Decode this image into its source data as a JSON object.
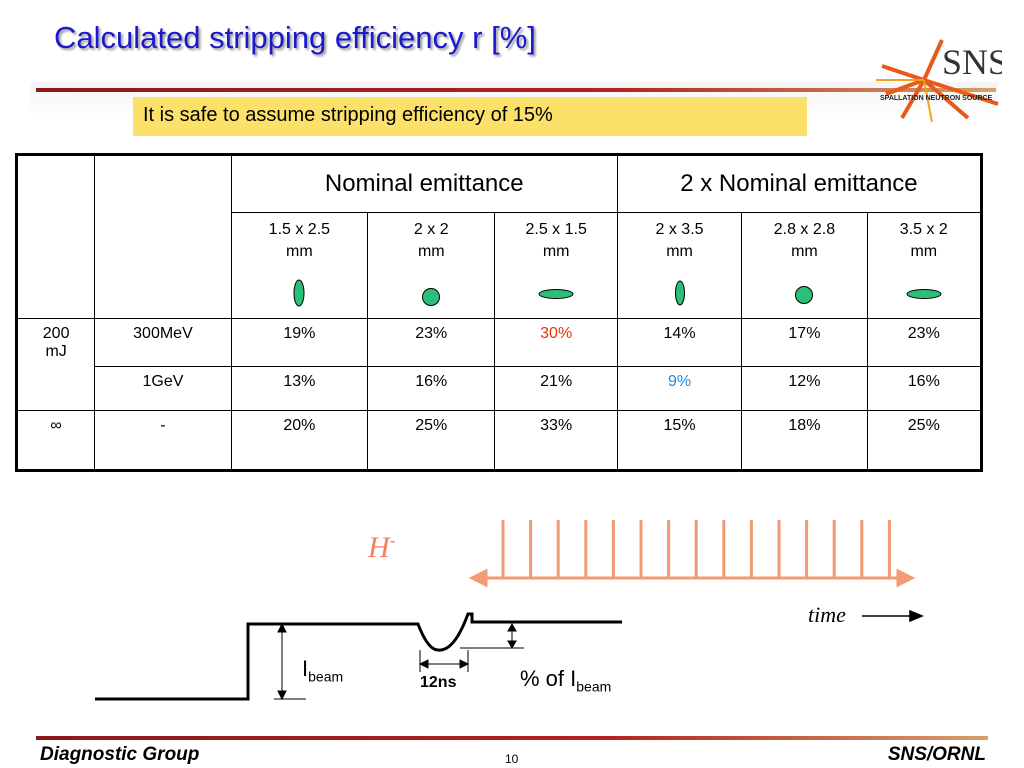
{
  "title": "Calculated stripping efficiency r [%]",
  "note": "It is safe to assume stripping efficiency of 15%",
  "logo": {
    "text": "SNS",
    "subtext": "SPALLATION NEUTRON SOURCE"
  },
  "table": {
    "group_headers": [
      "Nominal emittance",
      "2 x Nominal emittance"
    ],
    "columns": [
      {
        "line1": "1.5 x 2.5",
        "line2": "mm",
        "shape": "tall-ellipse"
      },
      {
        "line1": "2 x 2",
        "line2": "mm",
        "shape": "circle"
      },
      {
        "line1": "2.5 x 1.5",
        "line2": "mm",
        "shape": "wide-ellipse"
      },
      {
        "line1": "2 x 3.5",
        "line2": "mm",
        "shape": "tall-ellipse"
      },
      {
        "line1": "2.8 x 2.8",
        "line2": "mm",
        "shape": "circle"
      },
      {
        "line1": "3.5 x 2",
        "line2": "mm",
        "shape": "wide-ellipse"
      }
    ],
    "shape_color": "#2bbf7a",
    "rows": [
      {
        "label1_a": "200",
        "label1_b": "mJ",
        "label2": "300MeV",
        "values": [
          "19%",
          "23%",
          "30%",
          "14%",
          "17%",
          "23%"
        ]
      },
      {
        "label2": "1GeV",
        "values": [
          "13%",
          "16%",
          "21%",
          "9%",
          "12%",
          "16%"
        ]
      },
      {
        "label1": "∞",
        "label2": "-",
        "values": [
          "20%",
          "25%",
          "33%",
          "15%",
          "18%",
          "25%"
        ]
      }
    ],
    "highlight_colors": {
      "red": "#e63300",
      "blue": "#1a8ce6"
    }
  },
  "diagram": {
    "h_label": "H",
    "h_sup": "-",
    "time_label": "time",
    "ibeam_main": "I",
    "ibeam_sub": "beam",
    "width_label": "12ns",
    "pct_main": "% of I",
    "pct_sub": "beam"
  },
  "footer": {
    "left": "Diagnostic Group",
    "page": "10",
    "right": "SNS/ORNL"
  }
}
